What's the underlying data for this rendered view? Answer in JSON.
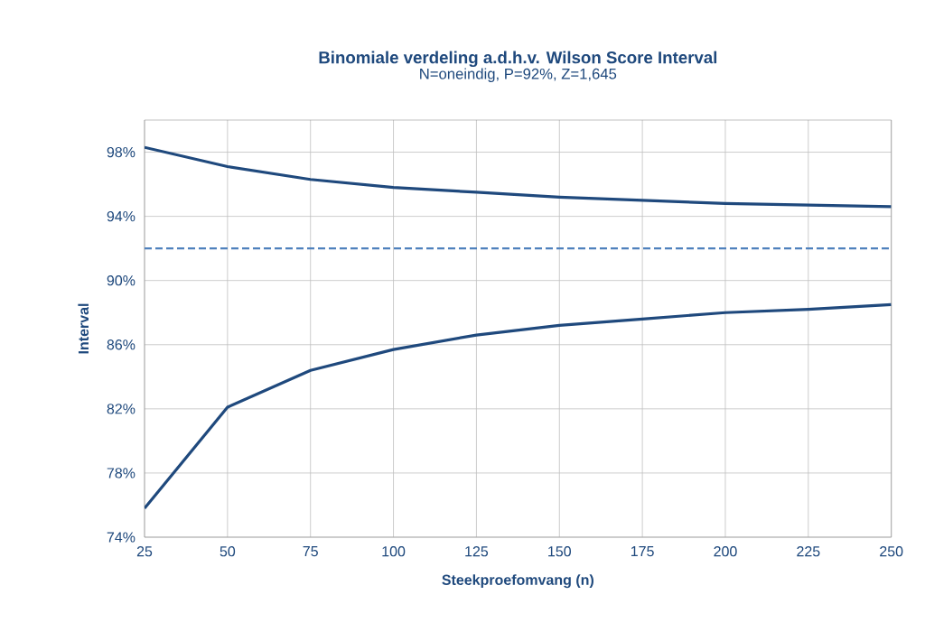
{
  "chart_data": {
    "type": "line",
    "title": "Binomiale verdeling a.d.h.v. Wilson Score Interval",
    "subtitle": "N=oneindig, P=92%, Z=1,645",
    "xlabel": "Steekproefomvang (n)",
    "ylabel": "Interval",
    "x": [
      25,
      50,
      75,
      100,
      125,
      150,
      175,
      200,
      225,
      250
    ],
    "series": [
      {
        "color": "#1f497d",
        "values": [
          98.3,
          97.1,
          96.3,
          95.8,
          95.5,
          95.2,
          95.0,
          94.8,
          94.7,
          94.6
        ]
      },
      {
        "color": "#1f497d",
        "values": [
          75.8,
          82.1,
          84.4,
          85.7,
          86.6,
          87.2,
          87.6,
          88.0,
          88.2,
          88.5
        ]
      }
    ],
    "ref_lines": [
      {
        "axis": "y",
        "value": 92,
        "color": "#4f81bd",
        "line_style": "dashed"
      }
    ],
    "xlim": [
      25,
      250
    ],
    "xticks": [
      25,
      50,
      75,
      100,
      125,
      150,
      175,
      200,
      225,
      250
    ],
    "ylim": [
      74,
      100
    ],
    "yticks": [
      {
        "value": 74,
        "label": "74%"
      },
      {
        "value": 78,
        "label": "78%"
      },
      {
        "value": 82,
        "label": "82%"
      },
      {
        "value": 86,
        "label": "86%"
      },
      {
        "value": 90,
        "label": "90%"
      },
      {
        "value": 94,
        "label": "94%"
      },
      {
        "value": 98,
        "label": "98%"
      }
    ],
    "grid": true,
    "marker": "none",
    "line_style": "solid"
  }
}
